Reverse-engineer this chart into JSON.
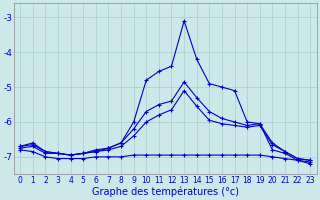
{
  "title": "Graphe des températures (°c)",
  "bg_color": "#cce8e8",
  "grid_color": "#aacccc",
  "line_color": "#0000cc",
  "x_labels": [
    "0",
    "1",
    "2",
    "3",
    "4",
    "5",
    "6",
    "7",
    "8",
    "9",
    "10",
    "11",
    "12",
    "13",
    "14",
    "15",
    "16",
    "17",
    "18",
    "19",
    "20",
    "21",
    "22",
    "23"
  ],
  "ylim": [
    -7.5,
    -2.6
  ],
  "yticks": [
    -7,
    -6,
    -5,
    -4,
    -3
  ],
  "line_max": [
    -6.7,
    -6.6,
    -6.85,
    -6.9,
    -6.95,
    -6.9,
    -6.85,
    -6.75,
    -6.6,
    -6.0,
    -4.8,
    -4.55,
    -4.4,
    -3.1,
    -4.2,
    -4.9,
    -5.0,
    -5.1,
    -6.0,
    -6.05,
    -6.8,
    -6.9,
    -7.1,
    -7.15
  ],
  "line_mean": [
    -6.7,
    -6.65,
    -6.85,
    -6.9,
    -6.95,
    -6.9,
    -6.8,
    -6.75,
    -6.6,
    -6.2,
    -5.7,
    -5.5,
    -5.4,
    -4.85,
    -5.3,
    -5.7,
    -5.9,
    -6.0,
    -6.1,
    -6.05,
    -6.6,
    -6.85,
    -7.05,
    -7.1
  ],
  "line_min": [
    -6.8,
    -6.85,
    -7.0,
    -7.05,
    -7.05,
    -7.05,
    -7.0,
    -7.0,
    -7.0,
    -6.95,
    -6.95,
    -6.95,
    -6.95,
    -6.95,
    -6.95,
    -6.95,
    -6.95,
    -6.95,
    -6.95,
    -6.95,
    -7.0,
    -7.05,
    -7.1,
    -7.2
  ],
  "line_extra": [
    -6.75,
    -6.7,
    -6.9,
    -6.9,
    -6.95,
    -6.9,
    -6.85,
    -6.8,
    -6.7,
    -6.4,
    -6.0,
    -5.8,
    -5.65,
    -5.1,
    -5.55,
    -5.95,
    -6.05,
    -6.1,
    -6.15,
    -6.1,
    -6.65,
    -6.85,
    -7.05,
    -7.1
  ],
  "title_fontsize": 7,
  "tick_fontsize": 5.5,
  "ytick_fontsize": 6.5
}
